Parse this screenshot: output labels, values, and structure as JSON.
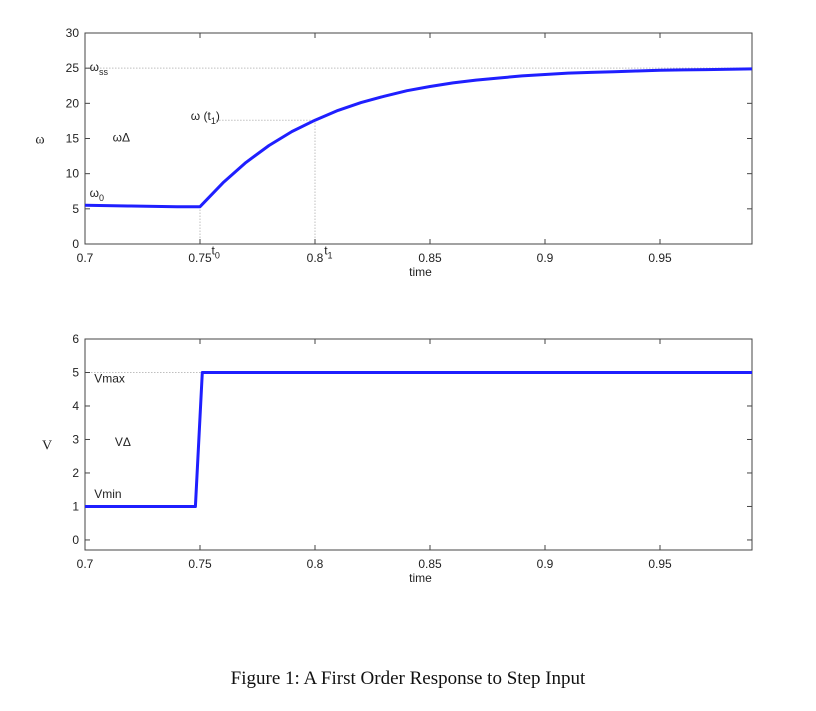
{
  "caption": "Figure 1:   A First Order Response to Step Input",
  "colors": {
    "series": "#1f1fff",
    "axis": "#444444",
    "guide": "#bfbfbf"
  },
  "chart_data": [
    {
      "type": "line",
      "ylabel": "ω",
      "xlabel": "time",
      "xlim": [
        0.7,
        0.99
      ],
      "ylim": [
        0,
        30
      ],
      "xticks": [
        0.7,
        0.75,
        0.8,
        0.85,
        0.9,
        0.95
      ],
      "xtick_labels": [
        "0.7",
        "0.75",
        "0.8",
        "0.85",
        "0.9",
        "0.95"
      ],
      "yticks": [
        0,
        5,
        10,
        15,
        20,
        25,
        30
      ],
      "ytick_labels": [
        "0",
        "5",
        "10",
        "15",
        "20",
        "25",
        "30"
      ],
      "grid": false,
      "series": [
        {
          "x": [
            0.7,
            0.72,
            0.74,
            0.75,
            0.76,
            0.77,
            0.78,
            0.79,
            0.8,
            0.81,
            0.82,
            0.83,
            0.84,
            0.85,
            0.86,
            0.87,
            0.88,
            0.89,
            0.9,
            0.91,
            0.92,
            0.93,
            0.94,
            0.95,
            0.96,
            0.97,
            0.98,
            0.99
          ],
          "y": [
            5.5,
            5.4,
            5.3,
            5.3,
            8.7,
            11.6,
            14.0,
            16.0,
            17.6,
            19.0,
            20.1,
            21.0,
            21.8,
            22.4,
            22.9,
            23.3,
            23.6,
            23.9,
            24.1,
            24.3,
            24.4,
            24.5,
            24.6,
            24.7,
            24.75,
            24.8,
            24.85,
            24.9
          ]
        }
      ],
      "reference_lines": [
        {
          "orientation": "horizontal",
          "y": 25,
          "x_from": 0.7,
          "x_to": 0.99
        },
        {
          "orientation": "horizontal",
          "y": 17.6,
          "x_from": 0.757,
          "x_to": 0.8
        },
        {
          "orientation": "vertical",
          "x": 0.75,
          "y_from": 0,
          "y_to": 5.3
        },
        {
          "orientation": "vertical",
          "x": 0.8,
          "y_from": 0,
          "y_to": 17.6
        }
      ],
      "annotations": [
        {
          "text": "ω",
          "sub": "ss",
          "x": 0.702,
          "y": 24.6
        },
        {
          "text": "ω (t",
          "sub": "1",
          "after": ")",
          "x": 0.746,
          "y": 17.6
        },
        {
          "text": "ωΔ",
          "sub": "",
          "x": 0.712,
          "y": 14.6
        },
        {
          "text": "ω",
          "sub": "0",
          "x": 0.702,
          "y": 6.7
        },
        {
          "text": "t",
          "sub": "0",
          "x": 0.755,
          "y": -1.5
        },
        {
          "text": "t",
          "sub": "1",
          "x": 0.804,
          "y": -1.5
        }
      ]
    },
    {
      "type": "line",
      "ylabel": "V",
      "xlabel": "time",
      "xlim": [
        0.7,
        0.99
      ],
      "ylim": [
        -0.3,
        6
      ],
      "xticks": [
        0.7,
        0.75,
        0.8,
        0.85,
        0.9,
        0.95
      ],
      "xtick_labels": [
        "0.7",
        "0.75",
        "0.8",
        "0.85",
        "0.9",
        "0.95"
      ],
      "yticks": [
        0,
        1,
        2,
        3,
        4,
        5,
        6
      ],
      "ytick_labels": [
        "0",
        "1",
        "2",
        "3",
        "4",
        "5",
        "6"
      ],
      "grid": false,
      "series": [
        {
          "x": [
            0.7,
            0.748,
            0.751,
            0.99
          ],
          "y": [
            1,
            1,
            5,
            5
          ]
        }
      ],
      "reference_lines": [
        {
          "orientation": "horizontal",
          "y": 5,
          "x_from": 0.7,
          "x_to": 0.99
        }
      ],
      "annotations": [
        {
          "text": "Vmax",
          "sub": "",
          "x": 0.704,
          "y": 4.7
        },
        {
          "text": "VΔ",
          "sub": "",
          "x": 0.713,
          "y": 2.8
        },
        {
          "text": "Vmin",
          "sub": "",
          "x": 0.704,
          "y": 1.25
        }
      ]
    }
  ]
}
